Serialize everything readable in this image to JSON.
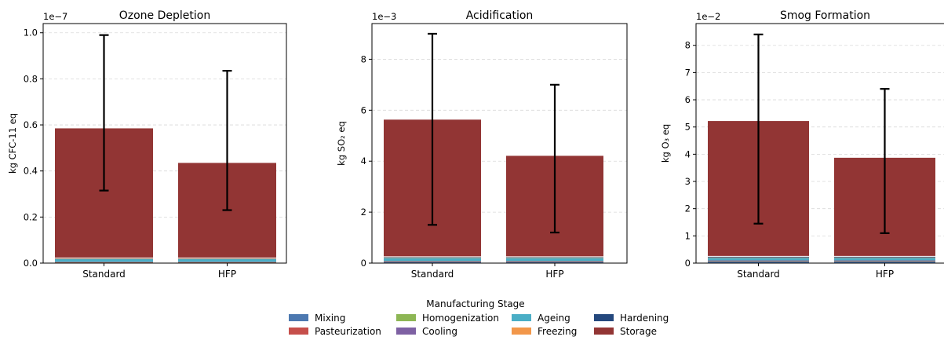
{
  "chart_data": [
    {
      "type": "bar",
      "stacked": true,
      "title": "Ozone Depletion",
      "ylabel": "kg CFC-11 eq",
      "scale_label": "1e−7",
      "ylim": [
        0,
        1.04
      ],
      "yticks": [
        "0.0",
        "0.2",
        "0.4",
        "0.6",
        "0.8",
        "1.0"
      ],
      "ytick_values": [
        0,
        0.2,
        0.4,
        0.6,
        0.8,
        1.0
      ],
      "categories": [
        "Standard",
        "HFP"
      ],
      "grid": true,
      "series": [
        {
          "name": "Mixing",
          "values": [
            0.003,
            0.003
          ]
        },
        {
          "name": "Pasteurization",
          "values": [
            0.001,
            0.001
          ]
        },
        {
          "name": "Homogenization",
          "values": [
            0.001,
            0.001
          ]
        },
        {
          "name": "Cooling",
          "values": [
            0.001,
            0.001
          ]
        },
        {
          "name": "Ageing",
          "values": [
            0.012,
            0.012
          ]
        },
        {
          "name": "Freezing",
          "values": [
            0.001,
            0.001
          ]
        },
        {
          "name": "Hardening",
          "values": [
            0.003,
            0.003
          ]
        },
        {
          "name": "Storage",
          "values": [
            0.563,
            0.413
          ]
        }
      ],
      "error_bars": [
        [
          0.315,
          0.99
        ],
        [
          0.23,
          0.835
        ]
      ]
    },
    {
      "type": "bar",
      "stacked": true,
      "title": "Acidification",
      "ylabel": "kg SO₂ eq",
      "scale_label": "1e−3",
      "ylim": [
        0,
        9.4
      ],
      "yticks": [
        "0",
        "2",
        "4",
        "6",
        "8"
      ],
      "ytick_values": [
        0,
        2,
        4,
        6,
        8
      ],
      "categories": [
        "Standard",
        "HFP"
      ],
      "grid": true,
      "series": [
        {
          "name": "Mixing",
          "values": [
            0.05,
            0.05
          ]
        },
        {
          "name": "Pasteurization",
          "values": [
            0.02,
            0.02
          ]
        },
        {
          "name": "Homogenization",
          "values": [
            0.01,
            0.01
          ]
        },
        {
          "name": "Cooling",
          "values": [
            0.01,
            0.01
          ]
        },
        {
          "name": "Ageing",
          "values": [
            0.12,
            0.12
          ]
        },
        {
          "name": "Freezing",
          "values": [
            0.01,
            0.01
          ]
        },
        {
          "name": "Hardening",
          "values": [
            0.03,
            0.03
          ]
        },
        {
          "name": "Storage",
          "values": [
            5.38,
            3.96
          ]
        }
      ],
      "error_bars": [
        [
          1.5,
          9.0
        ],
        [
          1.2,
          7.0
        ]
      ]
    },
    {
      "type": "bar",
      "stacked": true,
      "title": "Smog Formation",
      "ylabel": "kg O₃ eq",
      "scale_label": "1e−2",
      "ylim": [
        0,
        8.8
      ],
      "yticks": [
        "0",
        "1",
        "2",
        "3",
        "4",
        "5",
        "6",
        "7",
        "8"
      ],
      "ytick_values": [
        0,
        1,
        2,
        3,
        4,
        5,
        6,
        7,
        8
      ],
      "categories": [
        "Standard",
        "HFP"
      ],
      "grid": true,
      "series": [
        {
          "name": "Mixing",
          "values": [
            0.06,
            0.06
          ]
        },
        {
          "name": "Pasteurization",
          "values": [
            0.02,
            0.02
          ]
        },
        {
          "name": "Homogenization",
          "values": [
            0.01,
            0.01
          ]
        },
        {
          "name": "Cooling",
          "values": [
            0.01,
            0.01
          ]
        },
        {
          "name": "Ageing",
          "values": [
            0.1,
            0.1
          ]
        },
        {
          "name": "Freezing",
          "values": [
            0.01,
            0.01
          ]
        },
        {
          "name": "Hardening",
          "values": [
            0.04,
            0.04
          ]
        },
        {
          "name": "Storage",
          "values": [
            4.97,
            3.62
          ]
        }
      ],
      "error_bars": [
        [
          1.45,
          8.4
        ],
        [
          1.1,
          6.4
        ]
      ]
    }
  ],
  "legend": {
    "title": "Manufacturing Stage",
    "placement": "bottom-center",
    "items": [
      {
        "label": "Mixing",
        "color": "#4c78b0"
      },
      {
        "label": "Homogenization",
        "color": "#8db654"
      },
      {
        "label": "Ageing",
        "color": "#4aaec6"
      },
      {
        "label": "Hardening",
        "color": "#24487d"
      },
      {
        "label": "Pasteurization",
        "color": "#c64f4b"
      },
      {
        "label": "Cooling",
        "color": "#7e61a3"
      },
      {
        "label": "Freezing",
        "color": "#f2974a"
      },
      {
        "label": "Storage",
        "color": "#923534"
      }
    ]
  },
  "colors": {
    "Mixing": "#4c78b0",
    "Pasteurization": "#c64f4b",
    "Homogenization": "#8db654",
    "Cooling": "#7e61a3",
    "Ageing": "#4aaec6",
    "Freezing": "#f2974a",
    "Hardening": "#24487d",
    "Storage": "#923534"
  }
}
